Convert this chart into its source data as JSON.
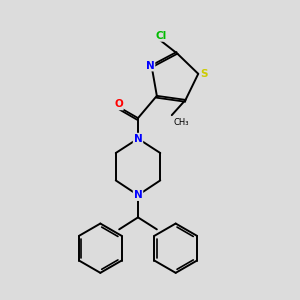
{
  "background_color": "#dcdcdc",
  "bond_color": "#000000",
  "atom_colors": {
    "Cl": "#00bb00",
    "S": "#cccc00",
    "N": "#0000ff",
    "O": "#ff0000",
    "C": "#000000"
  }
}
